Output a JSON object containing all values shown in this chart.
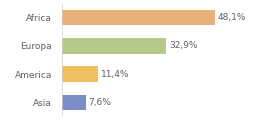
{
  "categories": [
    "Africa",
    "Europa",
    "America",
    "Asia"
  ],
  "values": [
    48.1,
    32.9,
    11.4,
    7.6
  ],
  "labels": [
    "48,1%",
    "32,9%",
    "11,4%",
    "7,6%"
  ],
  "bar_colors": [
    "#e8b07a",
    "#b5c98a",
    "#f0c060",
    "#7b8ec8"
  ],
  "xlim": [
    0,
    58
  ],
  "background_color": "#ffffff",
  "text_color": "#606060",
  "label_fontsize": 6.5,
  "tick_fontsize": 6.5,
  "bar_height": 0.55
}
